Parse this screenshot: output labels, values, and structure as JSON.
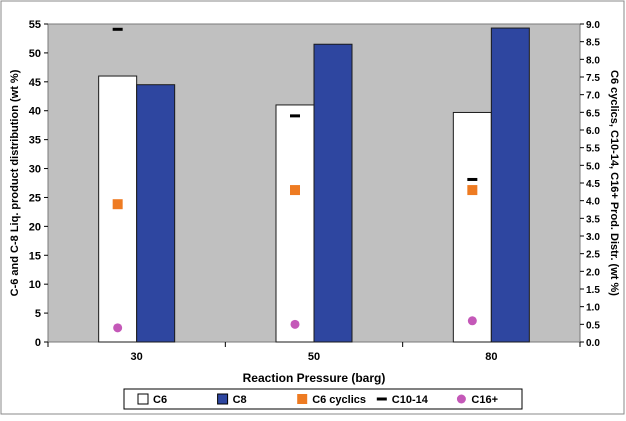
{
  "chart_data": {
    "type": "bar",
    "title": "",
    "xlabel": "Reaction Pressure (barg)",
    "ylabel_left": "C-6 and C-8 Liq. product distribution (wt %)",
    "ylabel_right": "C6 cyclics, C10-14, C16+ Prod. Distr. (wt %)",
    "categories": [
      "30",
      "50",
      "80"
    ],
    "y_left": {
      "lim": [
        0,
        55
      ],
      "ticks": [
        "0",
        "5",
        "10",
        "15",
        "20",
        "25",
        "30",
        "35",
        "40",
        "45",
        "50",
        "55"
      ]
    },
    "y_right": {
      "lim": [
        0,
        9.0
      ],
      "ticks": [
        "0.0",
        "0.5",
        "1.0",
        "1.5",
        "2.0",
        "2.5",
        "3.0",
        "3.5",
        "4.0",
        "4.5",
        "5.0",
        "5.5",
        "6.0",
        "6.5",
        "7.0",
        "7.5",
        "8.0",
        "8.5",
        "9.0"
      ]
    },
    "series": [
      {
        "name": "C6",
        "kind": "bar",
        "axis": "left",
        "color": "#ffffff",
        "values": [
          46.0,
          41.0,
          39.7
        ]
      },
      {
        "name": "C8",
        "kind": "bar",
        "axis": "left",
        "color": "#2e46a0",
        "values": [
          44.5,
          51.5,
          54.3
        ]
      },
      {
        "name": "C6  cyclics",
        "kind": "marker-square",
        "axis": "right",
        "color": "#ee7b22",
        "values": [
          3.9,
          4.3,
          4.3
        ]
      },
      {
        "name": "C10-14",
        "kind": "marker-dash",
        "axis": "right",
        "color": "#000000",
        "values": [
          8.85,
          6.4,
          4.6
        ]
      },
      {
        "name": "C16+",
        "kind": "marker-circle",
        "axis": "right",
        "color": "#c458b8",
        "values": [
          0.4,
          0.5,
          0.6
        ]
      }
    ],
    "grid": false,
    "plot_background": "#c0c0c0",
    "legend_position": "bottom"
  }
}
